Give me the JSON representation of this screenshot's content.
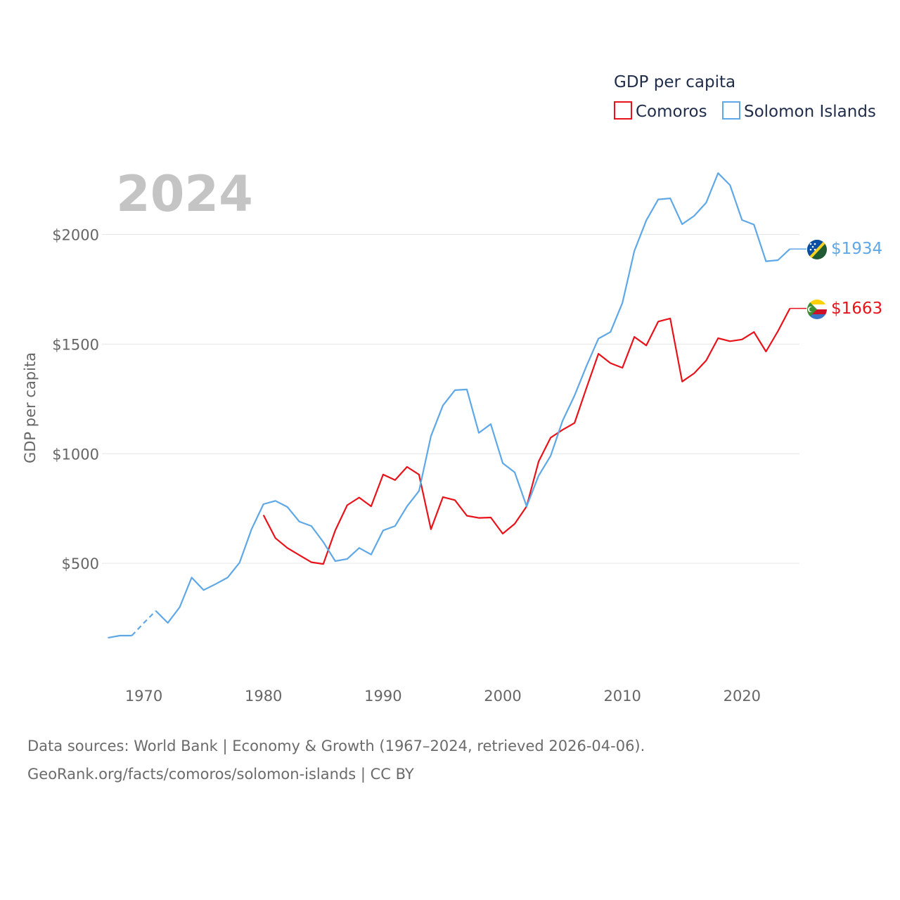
{
  "chart_data": {
    "type": "line",
    "year_label": "2024",
    "legend_title": "GDP per capita",
    "ylabel": "GDP per capita",
    "xlim": [
      1966.5,
      2024.8
    ],
    "ylim": [
      0,
      2300
    ],
    "y_ticks": [
      500,
      1000,
      1500,
      2000
    ],
    "y_tick_labels": [
      "$500",
      "$1000",
      "$1500",
      "$2000"
    ],
    "x_ticks": [
      1970,
      1980,
      1990,
      2000,
      2010,
      2020
    ],
    "x_tick_labels": [
      "1970",
      "1980",
      "1990",
      "2000",
      "2010",
      "2020"
    ],
    "series": [
      {
        "name": "Comoros",
        "color": "#e8131a",
        "end_label": "$1663",
        "flag": "comoros-flag",
        "segments": [
          {
            "dashed": false,
            "x": [
              1980,
              1981,
              1982,
              1983,
              1984,
              1985,
              1986,
              1987,
              1988,
              1989,
              1990,
              1991,
              1992,
              1993,
              1994,
              1995,
              1996,
              1997,
              1998,
              1999,
              2000,
              2001,
              2002,
              2003,
              2004,
              2005,
              2006,
              2007,
              2008,
              2009,
              2010,
              2011,
              2012,
              2013,
              2014,
              2015,
              2016,
              2017,
              2018,
              2019,
              2020,
              2021,
              2022,
              2023,
              2024
            ],
            "y": [
              720,
              615,
              570,
              537,
              505,
              497,
              650,
              765,
              800,
              760,
              905,
              880,
              940,
              905,
              655,
              802,
              788,
              717,
              707,
              709,
              635,
              680,
              760,
              965,
              1073,
              1109,
              1140,
              1300,
              1456,
              1413,
              1392,
              1533,
              1494,
              1603,
              1617,
              1329,
              1367,
              1425,
              1527,
              1513,
              1521,
              1555,
              1466,
              1559,
              1663
            ]
          }
        ]
      },
      {
        "name": "Solomon Islands",
        "color": "#5fa8e8",
        "end_label": "$1934",
        "flag": "solomon-islands-flag",
        "segments": [
          {
            "dashed": false,
            "x": [
              1967,
              1968,
              1969
            ],
            "y": [
              160,
              170,
              170
            ]
          },
          {
            "dashed": true,
            "x": [
              1969,
              1970,
              1971
            ],
            "y": [
              170,
              228,
              283
            ]
          },
          {
            "dashed": false,
            "x": [
              1971,
              1972,
              1973,
              1974,
              1975,
              1976,
              1977,
              1978,
              1979,
              1980,
              1981,
              1982,
              1983,
              1984,
              1985,
              1986,
              1987,
              1988,
              1989,
              1990,
              1991,
              1992,
              1993,
              1994,
              1995,
              1996,
              1997,
              1998,
              1999,
              2000,
              2001,
              2002,
              2003,
              2004,
              2005,
              2006,
              2007,
              2008,
              2009,
              2010,
              2011,
              2012,
              2013,
              2014,
              2015,
              2016,
              2017,
              2018,
              2019,
              2020,
              2021,
              2022,
              2023,
              2024
            ],
            "y": [
              283,
              228,
              300,
              435,
              378,
              405,
              435,
              503,
              655,
              770,
              785,
              757,
              690,
              670,
              597,
              510,
              520,
              570,
              540,
              650,
              670,
              760,
              830,
              1080,
              1220,
              1290,
              1293,
              1095,
              1135,
              957,
              915,
              760,
              900,
              990,
              1150,
              1265,
              1400,
              1525,
              1555,
              1688,
              1925,
              2065,
              2160,
              2165,
              2047,
              2085,
              2145,
              2280,
              2225,
              2066,
              2045,
              1878,
              1883,
              1934
            ]
          }
        ]
      }
    ]
  },
  "source": {
    "line1": "Data sources: World Bank | Economy & Growth (1967–2024, retrieved 2026-04-06).",
    "line2": "GeoRank.org/facts/comoros/solomon-islands | CC BY"
  }
}
